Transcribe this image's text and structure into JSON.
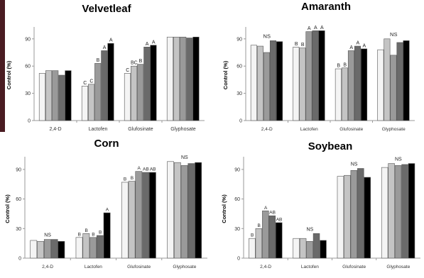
{
  "series_colors": [
    "#f4f4f4",
    "#c4c4c4",
    "#9a9a9a",
    "#6a6a6a",
    "#000000"
  ],
  "chart_data": [
    {
      "type": "bar",
      "title": "Velvetleaf",
      "ylabel": "Control (%)",
      "ylim": [
        0,
        100
      ],
      "yticks": [
        0,
        30,
        60,
        90
      ],
      "categories": [
        "2,4-D",
        "Lactofen",
        "Glufosinate",
        "Glyphosate"
      ],
      "values": [
        [
          52,
          55,
          55,
          50,
          55
        ],
        [
          38,
          40,
          63,
          77,
          85
        ],
        [
          52,
          60,
          62,
          81,
          83
        ],
        [
          92,
          92,
          92,
          91,
          92
        ]
      ],
      "letters": [
        [
          "",
          "",
          "",
          "",
          ""
        ],
        [
          "C",
          "C",
          "B",
          "A",
          "A"
        ],
        [
          "C",
          "BC",
          "B",
          "A",
          "A"
        ],
        [
          "",
          "",
          "",
          "",
          ""
        ]
      ],
      "group_labels": [
        "",
        "",
        "",
        ""
      ]
    },
    {
      "type": "bar",
      "title": "Amaranth",
      "ylabel": "Control (%)",
      "ylim": [
        0,
        100
      ],
      "yticks": [
        0,
        30,
        60,
        90
      ],
      "categories": [
        "2,4-D",
        "Lactofen",
        "Glufosinate",
        "Glyphosate"
      ],
      "values": [
        [
          83,
          82,
          75,
          88,
          87
        ],
        [
          81,
          80,
          98,
          99,
          99
        ],
        [
          57,
          58,
          77,
          82,
          79
        ],
        [
          78,
          90,
          72,
          86,
          88
        ]
      ],
      "letters": [
        [
          "",
          "",
          "",
          "",
          ""
        ],
        [
          "B",
          "B",
          "A",
          "A",
          "A"
        ],
        [
          "B",
          "B",
          "A",
          "A",
          "A"
        ],
        [
          "",
          "",
          "",
          "",
          ""
        ]
      ],
      "group_labels": [
        "NS",
        "",
        "",
        "NS"
      ]
    },
    {
      "type": "bar",
      "title": "Corn",
      "ylabel": "Control (%)",
      "ylim": [
        0,
        100
      ],
      "yticks": [
        0,
        30,
        60,
        90
      ],
      "categories": [
        "2,4-D",
        "Lactofen",
        "Glufosinate",
        "Glyphosate"
      ],
      "values": [
        [
          18,
          17,
          19,
          19,
          17
        ],
        [
          21,
          25,
          21,
          23,
          46
        ],
        [
          77,
          78,
          88,
          87,
          87
        ],
        [
          98,
          97,
          94,
          96,
          97
        ]
      ],
      "letters": [
        [
          "",
          "",
          "",
          "",
          ""
        ],
        [
          "B",
          "B",
          "B",
          "B",
          "A"
        ],
        [
          "B",
          "B",
          "A",
          "AB",
          "AB"
        ],
        [
          "",
          "",
          "",
          "",
          ""
        ]
      ],
      "group_labels": [
        "NS",
        "",
        "",
        "NS"
      ]
    },
    {
      "type": "bar",
      "title": "Soybean",
      "ylabel": "Control (%)",
      "ylim": [
        0,
        100
      ],
      "yticks": [
        0,
        30,
        60,
        90
      ],
      "categories": [
        "2,4-D",
        "Lactofen",
        "Glufosinate",
        "Glyphosate"
      ],
      "values": [
        [
          20,
          30,
          48,
          43,
          36
        ],
        [
          20,
          20,
          17,
          25,
          18
        ],
        [
          83,
          84,
          89,
          91,
          82
        ],
        [
          92,
          96,
          94,
          95,
          96
        ]
      ],
      "letters": [
        [
          "B",
          "B",
          "A",
          "AB",
          "AB"
        ],
        [
          "",
          "",
          "",
          "",
          ""
        ],
        [
          "",
          "",
          "",
          "",
          ""
        ],
        [
          "",
          "",
          "",
          "",
          ""
        ]
      ],
      "group_labels": [
        "",
        "NS",
        "NS",
        "NS"
      ]
    }
  ]
}
